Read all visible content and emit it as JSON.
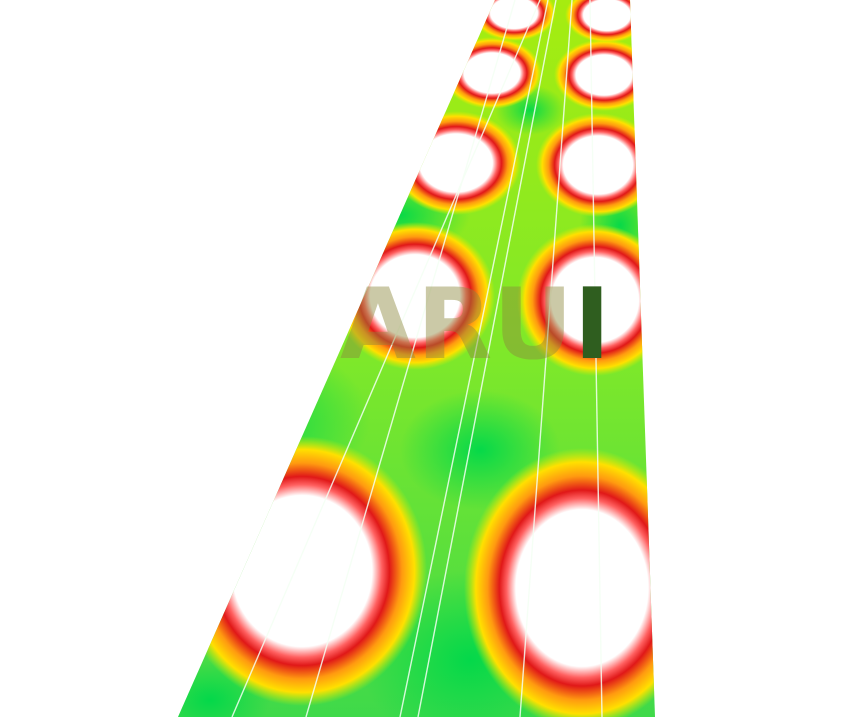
{
  "scene": {
    "description_name": "road-illuminance-heatmap",
    "colors": {
      "background": "#ffffff",
      "low": "#10d040",
      "mid": "#c8f000",
      "high": "#ffd000",
      "peak": "#e01010",
      "saturated": "#ffffff",
      "lane_line": "#f4fff4"
    },
    "watermark": {
      "text": "ARUI",
      "lead": "ARU",
      "tail": "I"
    }
  }
}
